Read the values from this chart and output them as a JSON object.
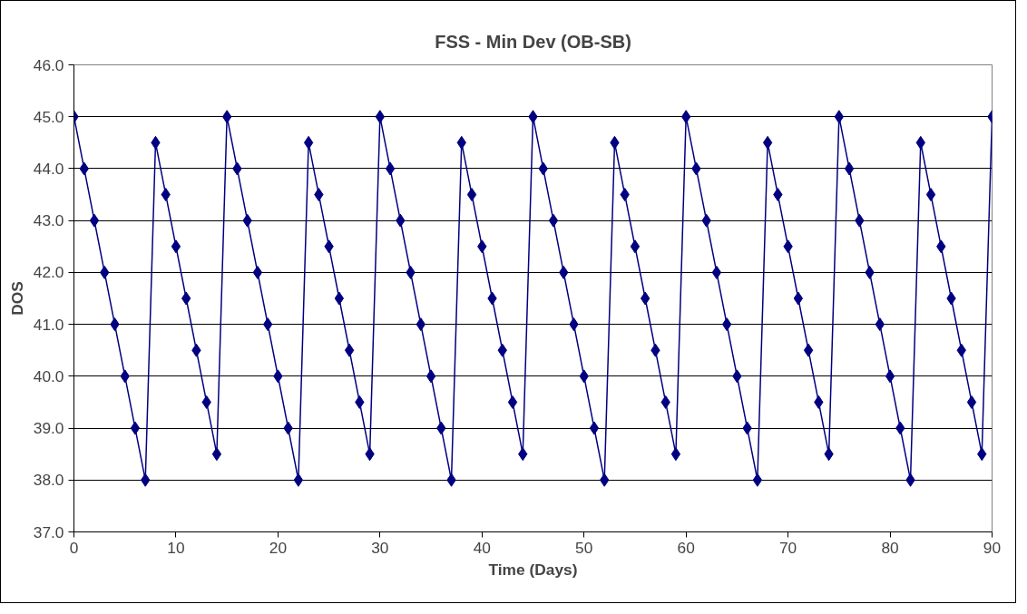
{
  "chart_data": {
    "type": "line",
    "title": "FSS - Min Dev (OB-SB)",
    "xlabel": "Time (Days)",
    "ylabel": "DOS",
    "x": [
      0,
      1,
      2,
      3,
      4,
      5,
      6,
      7,
      8,
      9,
      10,
      11,
      12,
      13,
      14,
      15,
      16,
      17,
      18,
      19,
      20,
      21,
      22,
      23,
      24,
      25,
      26,
      27,
      28,
      29,
      30,
      31,
      32,
      33,
      34,
      35,
      36,
      37,
      38,
      39,
      40,
      41,
      42,
      43,
      44,
      45,
      46,
      47,
      48,
      49,
      50,
      51,
      52,
      53,
      54,
      55,
      56,
      57,
      58,
      59,
      60,
      61,
      62,
      63,
      64,
      65,
      66,
      67,
      68,
      69,
      70,
      71,
      72,
      73,
      74,
      75,
      76,
      77,
      78,
      79,
      80,
      81,
      82,
      83,
      84,
      85,
      86,
      87,
      88,
      89,
      90
    ],
    "series": [
      {
        "color": "#000080",
        "values": [
          45,
          44,
          43,
          42,
          41,
          40,
          39,
          38,
          44.5,
          43.5,
          42.5,
          41.5,
          40.5,
          39.5,
          38.5,
          45,
          44,
          43,
          42,
          41,
          40,
          39,
          38,
          44.5,
          43.5,
          42.5,
          41.5,
          40.5,
          39.5,
          38.5,
          45,
          44,
          43,
          42,
          41,
          40,
          39,
          38,
          44.5,
          43.5,
          42.5,
          41.5,
          40.5,
          39.5,
          38.5,
          45,
          44,
          43,
          42,
          41,
          40,
          39,
          38,
          44.5,
          43.5,
          42.5,
          41.5,
          40.5,
          39.5,
          38.5,
          45,
          44,
          43,
          42,
          41,
          40,
          39,
          38,
          44.5,
          43.5,
          42.5,
          41.5,
          40.5,
          39.5,
          38.5,
          45,
          44,
          43,
          42,
          41,
          40,
          39,
          38,
          44.5,
          43.5,
          42.5,
          41.5,
          40.5,
          39.5,
          38.5,
          45
        ]
      }
    ],
    "xlim": [
      0,
      90
    ],
    "xticks": [
      0,
      10,
      20,
      30,
      40,
      50,
      60,
      70,
      80,
      90
    ],
    "ylim": [
      37,
      46
    ],
    "yticks": [
      {
        "value": 37,
        "label": "37.0"
      },
      {
        "value": 38,
        "label": "38.0"
      },
      {
        "value": 39,
        "label": "39.0"
      },
      {
        "value": 40,
        "label": "40.0"
      },
      {
        "value": 41,
        "label": "41.0"
      },
      {
        "value": 42,
        "label": "42.0"
      },
      {
        "value": 43,
        "label": "43.0"
      },
      {
        "value": 44,
        "label": "44.0"
      },
      {
        "value": 45,
        "label": "45.0"
      },
      {
        "value": 46,
        "label": "46.0"
      }
    ],
    "grid": "y",
    "marker": "diamond",
    "line_style": "solid"
  }
}
